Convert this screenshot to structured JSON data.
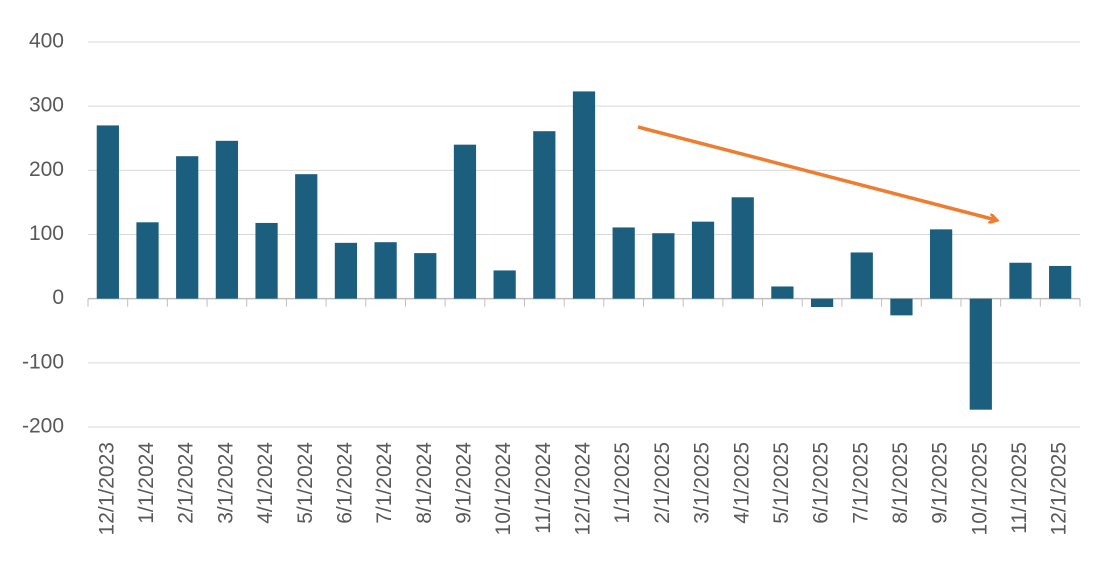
{
  "chart_data": {
    "type": "bar",
    "categories": [
      "12/1/2023",
      "1/1/2024",
      "2/1/2024",
      "3/1/2024",
      "4/1/2024",
      "5/1/2024",
      "6/1/2024",
      "7/1/2024",
      "8/1/2024",
      "9/1/2024",
      "10/1/2024",
      "11/1/2024",
      "12/1/2024",
      "1/1/2025",
      "2/1/2025",
      "3/1/2025",
      "4/1/2025",
      "5/1/2025",
      "6/1/2025",
      "7/1/2025",
      "8/1/2025",
      "9/1/2025",
      "10/1/2025",
      "11/1/2025",
      "12/1/2025"
    ],
    "values": [
      270,
      119,
      222,
      246,
      118,
      194,
      87,
      88,
      71,
      240,
      44,
      261,
      323,
      111,
      102,
      120,
      158,
      19,
      -13,
      72,
      -26,
      108,
      -173,
      56,
      51
    ],
    "color": "#1b5e7e",
    "ylim": [
      -200,
      400
    ],
    "yticks": [
      -200,
      -100,
      0,
      100,
      200,
      300,
      400
    ],
    "grid": true
  }
}
